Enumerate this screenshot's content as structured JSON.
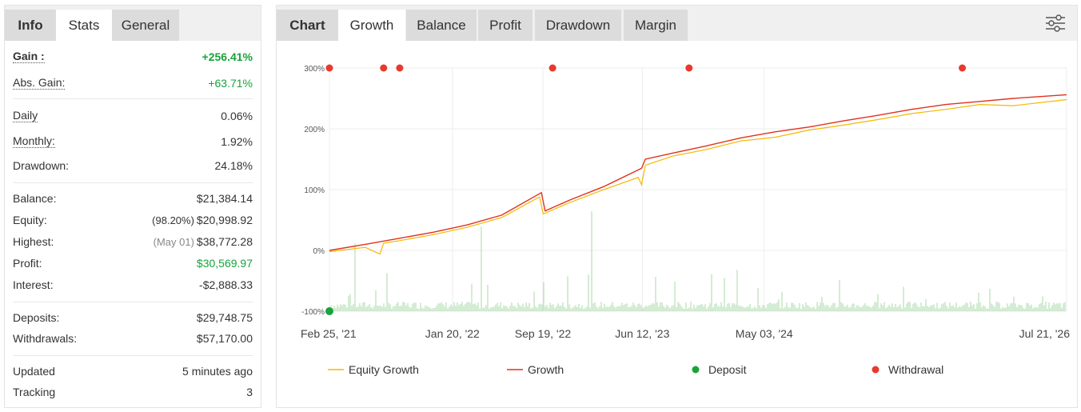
{
  "left_tabs": [
    {
      "label": "Info",
      "active": false,
      "bold": true
    },
    {
      "label": "Stats",
      "active": true,
      "bold": false
    },
    {
      "label": "General",
      "active": false,
      "bold": false
    }
  ],
  "stats": {
    "gain_label": "Gain :",
    "gain_value": "+256.41%",
    "abs_gain_label": "Abs. Gain:",
    "abs_gain_value": "+63.71%",
    "daily_label": "Daily",
    "daily_value": "0.06%",
    "monthly_label": "Monthly:",
    "monthly_value": "1.92%",
    "drawdown_label": "Drawdown:",
    "drawdown_value": "24.18%",
    "balance_label": "Balance:",
    "balance_value": "$21,384.14",
    "equity_label": "Equity:",
    "equity_pct": "(98.20%)",
    "equity_value": "$20,998.92",
    "highest_label": "Highest:",
    "highest_date": "(May 01)",
    "highest_value": "$38,772.28",
    "profit_label": "Profit:",
    "profit_value": "$30,569.97",
    "interest_label": "Interest:",
    "interest_value": "-$2,888.33",
    "deposits_label": "Deposits:",
    "deposits_value": "$29,748.75",
    "withdrawals_label": "Withdrawals:",
    "withdrawals_value": "$57,170.00",
    "updated_label": "Updated",
    "updated_value": "5 minutes ago",
    "tracking_label": "Tracking",
    "tracking_value": "3"
  },
  "right_tabs": [
    {
      "label": "Chart",
      "active": false,
      "bold": true
    },
    {
      "label": "Growth",
      "active": true,
      "bold": false
    },
    {
      "label": "Balance",
      "active": false,
      "bold": false
    },
    {
      "label": "Profit",
      "active": false,
      "bold": false
    },
    {
      "label": "Drawdown",
      "active": false,
      "bold": false
    },
    {
      "label": "Margin",
      "active": false,
      "bold": false
    }
  ],
  "settings_icon": "sliders-icon",
  "colors": {
    "equity": "#f5b800",
    "growth": "#e0321e",
    "deposit": "#1aa33a",
    "withdrawal": "#e8392e",
    "volume": "#a8d8a8",
    "green_text": "#16a43a"
  },
  "chart_data": {
    "type": "line",
    "y_unit": "%",
    "ylim": [
      -100,
      300
    ],
    "yticks": [
      -100,
      0,
      100,
      200,
      300
    ],
    "ytick_labels": [
      "-100%",
      "0%",
      "100%",
      "200%",
      "300%"
    ],
    "xlim": [
      "2021-02-25",
      "2026-07-21"
    ],
    "xtick_labels": [
      "Feb 25, '21",
      "Jan 20, '22",
      "Sep 19, '22",
      "Jun 12, '23",
      "May 03, '24",
      "Jul 21, '26"
    ],
    "xtick_dates": [
      "2021-02-25",
      "2022-01-20",
      "2022-09-19",
      "2023-06-12",
      "2024-05-03",
      "2026-07-21"
    ],
    "grid": true,
    "legend_position": "bottom",
    "legend": [
      "Equity Growth",
      "Growth",
      "Deposit",
      "Withdrawal"
    ],
    "series": [
      {
        "name": "Growth",
        "x": [
          "2021-02-25",
          "2021-06-01",
          "2021-09-01",
          "2021-12-01",
          "2022-03-01",
          "2022-06-01",
          "2022-09-15",
          "2022-09-25",
          "2022-12-01",
          "2023-03-01",
          "2023-06-10",
          "2023-06-20",
          "2023-09-01",
          "2023-12-01",
          "2024-03-01",
          "2024-06-01",
          "2024-09-01",
          "2024-12-01",
          "2025-03-01",
          "2025-06-01",
          "2025-09-01",
          "2025-12-01",
          "2026-03-01",
          "2026-07-21"
        ],
        "values": [
          0,
          10,
          20,
          30,
          42,
          58,
          95,
          65,
          83,
          105,
          135,
          150,
          160,
          172,
          185,
          195,
          203,
          213,
          222,
          232,
          240,
          245,
          250,
          256
        ]
      },
      {
        "name": "Equity Growth",
        "x": [
          "2021-02-25",
          "2021-06-01",
          "2021-07-10",
          "2021-07-20",
          "2021-09-01",
          "2021-12-01",
          "2022-03-01",
          "2022-06-01",
          "2022-09-10",
          "2022-09-20",
          "2022-12-01",
          "2023-03-01",
          "2023-06-01",
          "2023-06-10",
          "2023-06-20",
          "2023-09-01",
          "2023-12-01",
          "2024-03-01",
          "2024-06-01",
          "2024-09-01",
          "2024-12-01",
          "2025-03-01",
          "2025-06-01",
          "2025-09-01",
          "2025-12-01",
          "2026-03-01",
          "2026-07-21"
        ],
        "values": [
          -2,
          5,
          -6,
          12,
          16,
          26,
          38,
          54,
          88,
          60,
          79,
          100,
          120,
          108,
          140,
          155,
          166,
          180,
          186,
          198,
          206,
          215,
          225,
          232,
          240,
          238,
          248
        ]
      }
    ],
    "deposits": [
      {
        "x": "2021-02-25",
        "y": -100
      }
    ],
    "withdrawals": [
      {
        "x": "2021-02-25",
        "y": 300
      },
      {
        "x": "2021-07-20",
        "y": 300
      },
      {
        "x": "2021-09-01",
        "y": 300
      },
      {
        "x": "2022-10-15",
        "y": 300
      },
      {
        "x": "2023-10-15",
        "y": 300
      },
      {
        "x": "2025-10-15",
        "y": 300
      }
    ]
  }
}
